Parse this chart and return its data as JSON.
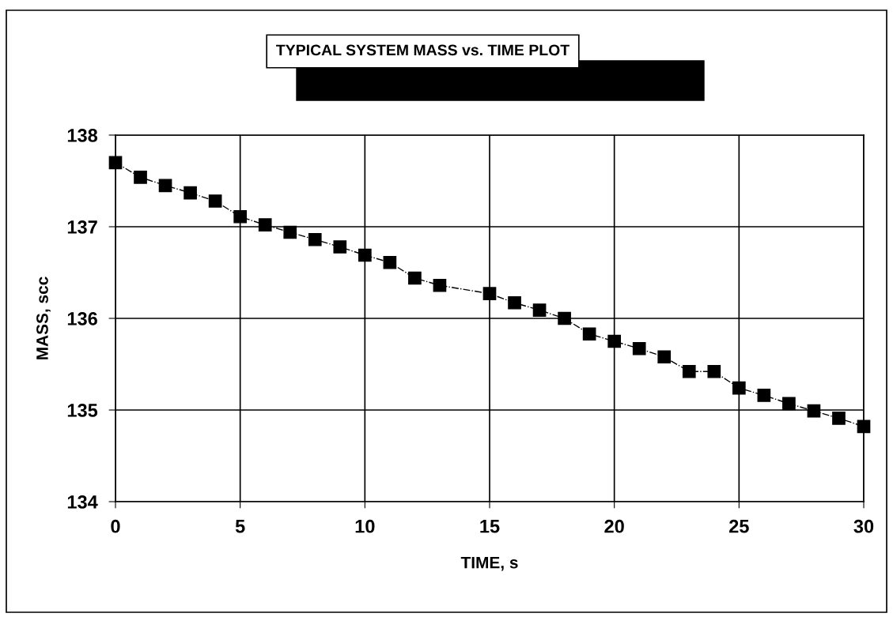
{
  "chart_data": {
    "type": "line",
    "title": "TYPICAL SYSTEM MASS vs. TIME PLOT",
    "xlabel": "TIME, s",
    "ylabel": "MASS, scc",
    "series": [
      {
        "color": "#000000",
        "x": [
          0,
          1,
          2,
          3,
          4,
          5,
          6,
          7,
          8,
          9,
          10,
          11,
          12,
          13,
          15,
          16,
          17,
          18,
          19,
          20,
          21,
          22,
          23,
          24,
          25,
          26,
          27,
          28,
          29,
          30
        ],
        "values": [
          137.7,
          137.54,
          137.45,
          137.37,
          137.28,
          137.11,
          137.02,
          136.94,
          136.86,
          136.78,
          136.69,
          136.61,
          136.44,
          136.36,
          136.27,
          136.17,
          136.09,
          136.0,
          135.83,
          135.75,
          135.67,
          135.58,
          135.42,
          135.42,
          135.24,
          135.16,
          135.07,
          134.99,
          134.91,
          134.82
        ]
      }
    ],
    "xlim": [
      0,
      30
    ],
    "xticks": [
      0,
      5,
      10,
      15,
      20,
      25,
      30
    ],
    "ylim": [
      134,
      138
    ],
    "yticks": [
      134,
      135,
      136,
      137,
      138
    ],
    "grid": true,
    "marker": "square",
    "line_style": "dashdot"
  }
}
